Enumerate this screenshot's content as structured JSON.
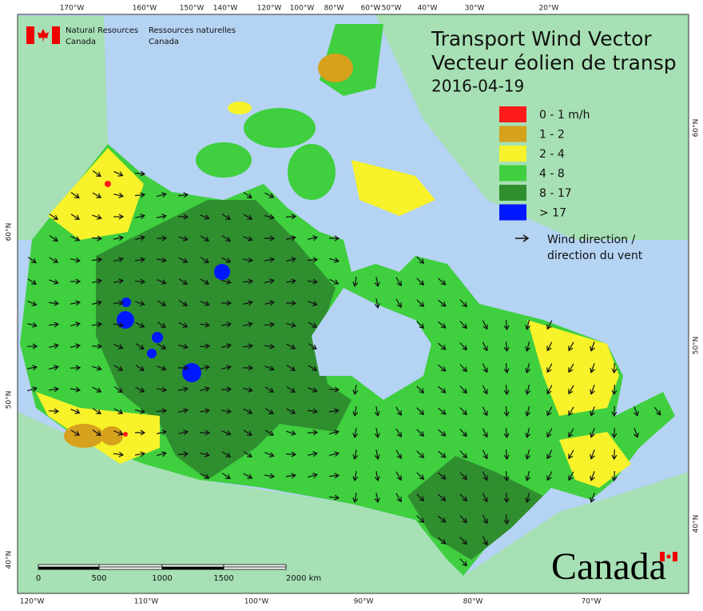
{
  "header": {
    "title_en": "Transport Wind Vector",
    "title_fr": "Vecteur éolien de transp",
    "date": "2016-04-19"
  },
  "agency": {
    "en": [
      "Natural Resources",
      "Canada"
    ],
    "fr": [
      "Ressources naturelles",
      "Canada"
    ]
  },
  "legend": {
    "classes": [
      "0 - 1 m/h",
      "1 - 2",
      "2 - 4",
      "4 - 8",
      "8 - 17",
      "> 17"
    ],
    "arrow": [
      "Wind direction /",
      "direction du vent"
    ]
  },
  "graticule": {
    "top": [
      "170°W",
      "160°W",
      "150°W",
      "140°W",
      "120°W",
      "100°W",
      "80°W",
      "60°W",
      "50°W",
      "40°W",
      "30°W",
      "20°W"
    ],
    "bottom": [
      "120°W",
      "110°W",
      "100°W",
      "90°W",
      "80°W",
      "70°W"
    ],
    "left": [
      "60°N",
      "50°N",
      "40°N"
    ],
    "right": [
      "60°N",
      "50°N",
      "40°N"
    ]
  },
  "scale_bar": {
    "labels": [
      "0",
      "500",
      "1000",
      "1500",
      "2000 km"
    ]
  },
  "wordmark": "Canada"
}
